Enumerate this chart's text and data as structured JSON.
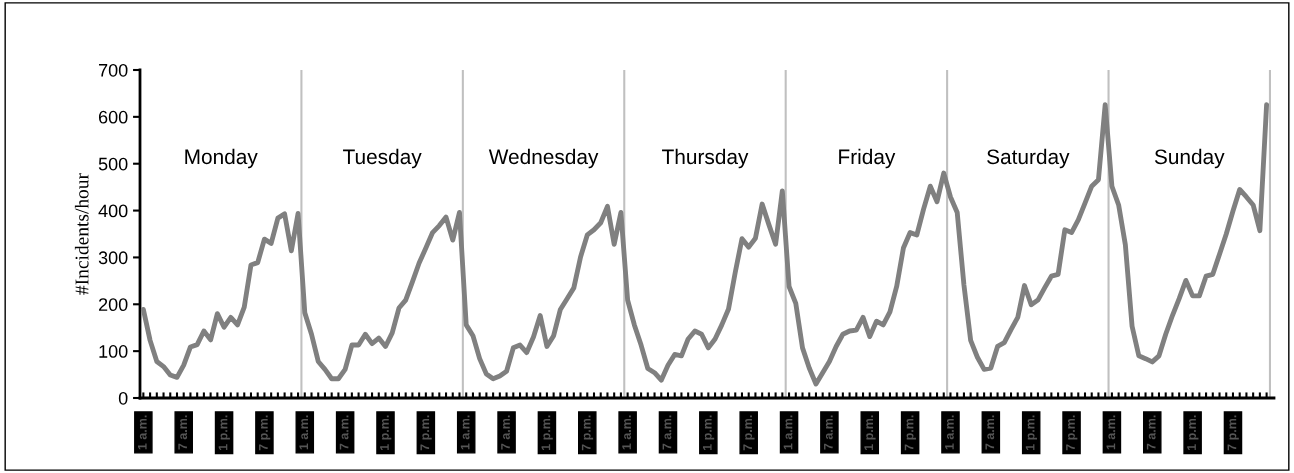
{
  "chart_data": {
    "type": "line",
    "ylabel": "#Incidents/hour",
    "categories": [
      "1 a.m.",
      null,
      null,
      null,
      null,
      null,
      "7 a.m.",
      null,
      null,
      null,
      null,
      null,
      "1 p.m.",
      null,
      null,
      null,
      null,
      null,
      "7 p.m.",
      null,
      null,
      null,
      null,
      null,
      "1 a.m.",
      null,
      null,
      null,
      null,
      null,
      "7 a.m.",
      null,
      null,
      null,
      null,
      null,
      "1 p.m.",
      null,
      null,
      null,
      null,
      null,
      "7 p.m.",
      null,
      null,
      null,
      null,
      null,
      "1 a.m.",
      null,
      null,
      null,
      null,
      null,
      "7 a.m.",
      null,
      null,
      null,
      null,
      null,
      "1 p.m.",
      null,
      null,
      null,
      null,
      null,
      "7 p.m.",
      null,
      null,
      null,
      null,
      null,
      "1 a.m.",
      null,
      null,
      null,
      null,
      null,
      "7 a.m.",
      null,
      null,
      null,
      null,
      null,
      "1 p.m.",
      null,
      null,
      null,
      null,
      null,
      "7 p.m.",
      null,
      null,
      null,
      null,
      null,
      "1 a.m.",
      null,
      null,
      null,
      null,
      null,
      "7 a.m.",
      null,
      null,
      null,
      null,
      null,
      "1 p.m.",
      null,
      null,
      null,
      null,
      null,
      "7 p.m.",
      null,
      null,
      null,
      null,
      null,
      "1 a.m.",
      null,
      null,
      null,
      null,
      null,
      "7 a.m.",
      null,
      null,
      null,
      null,
      null,
      "1 p.m.",
      null,
      null,
      null,
      null,
      null,
      "7 p.m.",
      null,
      null,
      null,
      null,
      null,
      "1 a.m.",
      null,
      null,
      null,
      null,
      null,
      "7 a.m.",
      null,
      null,
      null,
      null,
      null,
      "1 p.m.",
      null,
      null,
      null,
      null,
      null,
      "7 p.m.",
      null,
      null,
      null,
      null,
      null
    ],
    "series": [
      {
        "color": "#808080",
        "values": [
          189,
          123,
          78,
          67,
          49,
          44,
          70,
          109,
          114,
          143,
          124,
          180,
          151,
          172,
          156,
          194,
          284,
          289,
          339,
          330,
          384,
          393,
          314,
          394,
          182,
          136,
          78,
          61,
          41,
          41,
          61,
          113,
          113,
          136,
          116,
          128,
          110,
          139,
          192,
          209,
          248,
          288,
          320,
          353,
          368,
          386,
          337,
          396,
          156,
          133,
          84,
          51,
          41,
          47,
          57,
          107,
          113,
          97,
          130,
          176,
          110,
          133,
          189,
          212,
          235,
          301,
          348,
          359,
          374,
          409,
          328,
          396,
          209,
          156,
          113,
          63,
          54,
          38,
          70,
          93,
          90,
          126,
          143,
          136,
          107,
          126,
          156,
          190,
          268,
          340,
          322,
          341,
          414,
          370,
          328,
          442,
          238,
          202,
          107,
          64,
          30,
          54,
          78,
          110,
          136,
          143,
          145,
          172,
          131,
          164,
          156,
          184,
          238,
          320,
          353,
          348,
          403,
          452,
          419,
          480,
          429,
          396,
          241,
          123,
          87,
          61,
          64,
          110,
          118,
          146,
          172,
          240,
          199,
          209,
          235,
          260,
          264,
          359,
          353,
          380,
          416,
          452,
          466,
          626,
          452,
          412,
          327,
          153,
          90,
          84,
          77,
          90,
          136,
          176,
          212,
          251,
          218,
          218,
          260,
          264,
          307,
          350,
          399,
          445,
          429,
          412,
          357,
          626
        ]
      }
    ],
    "ylim": [
      0,
      700
    ],
    "yticks": [
      0,
      100,
      200,
      300,
      400,
      500,
      600,
      700
    ],
    "annotations": [
      "Monday",
      "Tuesday",
      "Wednesday",
      "Thursday",
      "Friday",
      "Saturday",
      "Sunday"
    ],
    "grid": false,
    "legend": false,
    "marker": "none",
    "line_style": "solid"
  }
}
